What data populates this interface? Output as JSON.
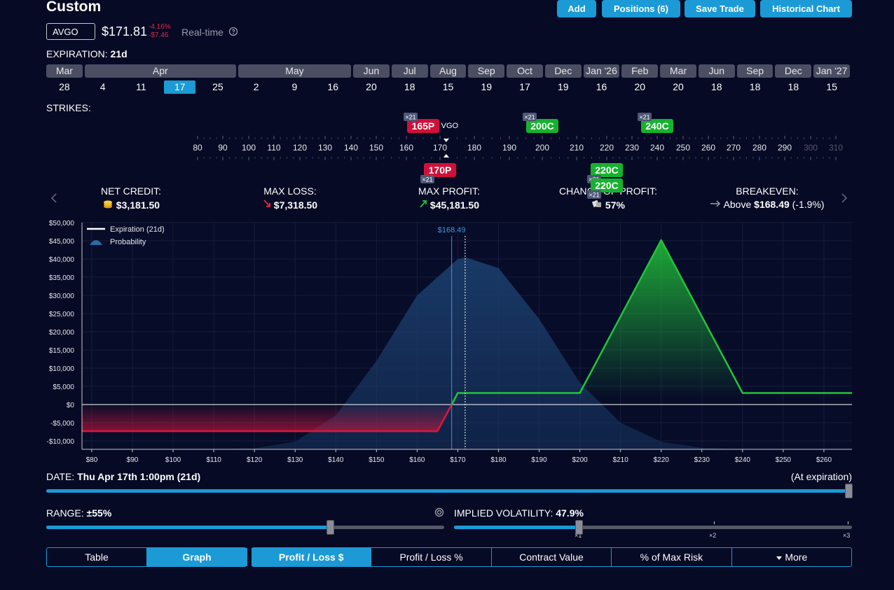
{
  "header": {
    "title": "Custom",
    "buttons": [
      "Add",
      "Positions (6)",
      "Save Trade",
      "Historical Chart"
    ]
  },
  "quote": {
    "symbol": "AVGO",
    "price": "$171.81",
    "change_pct": "-4.16%",
    "change_abs": "-$7.46",
    "feed": "Real-time"
  },
  "expiration": {
    "label": "EXPIRATION:",
    "value": "21d",
    "months": [
      {
        "name": "Mar",
        "days": [
          28
        ]
      },
      {
        "name": "Apr",
        "days": [
          4,
          11,
          17,
          25
        ]
      },
      {
        "name": "May",
        "days": [
          2,
          9,
          16
        ]
      },
      {
        "name": "Jun",
        "days": [
          20
        ]
      },
      {
        "name": "Jul",
        "days": [
          18
        ]
      },
      {
        "name": "Aug",
        "days": [
          15
        ]
      },
      {
        "name": "Sep",
        "days": [
          19
        ]
      },
      {
        "name": "Oct",
        "days": [
          17
        ]
      },
      {
        "name": "Dec",
        "days": [
          19
        ]
      },
      {
        "name": "Jan '26",
        "days": [
          16
        ]
      },
      {
        "name": "Feb",
        "days": [
          20
        ]
      },
      {
        "name": "Mar",
        "days": [
          20
        ]
      },
      {
        "name": "Jun",
        "days": [
          18
        ]
      },
      {
        "name": "Sep",
        "days": [
          18
        ]
      },
      {
        "name": "Dec",
        "days": [
          18
        ]
      },
      {
        "name": "Jan '27",
        "days": [
          15
        ]
      }
    ],
    "selected": {
      "month": 1,
      "day": 2
    }
  },
  "strikes": {
    "label": "STRIKES:",
    "ticks": [
      80,
      90,
      100,
      110,
      120,
      130,
      140,
      150,
      160,
      170,
      180,
      190,
      200,
      210,
      220,
      230,
      240,
      250,
      260,
      270,
      280,
      290,
      300,
      310
    ],
    "price_marker": "VGO",
    "above": [
      {
        "label": "165P",
        "qty": "×21",
        "strike": 165,
        "color": "#d0103a"
      },
      {
        "label": "200C",
        "qty": "×21",
        "strike": 200,
        "color": "#16b22e"
      },
      {
        "label": "240C",
        "qty": "×21",
        "strike": 240,
        "color": "#16b22e"
      }
    ],
    "below": [
      {
        "label": "170P",
        "qty": "×21",
        "strike": 170,
        "color": "#d0103a"
      },
      {
        "label": "220C",
        "qty": "×21",
        "strike": 220,
        "color": "#16b22e"
      },
      {
        "label": "220C",
        "qty": "×21",
        "strike": 220,
        "color": "#16b22e"
      }
    ]
  },
  "stats": [
    {
      "label": "NET CREDIT:",
      "value": "$3,181.50"
    },
    {
      "label": "MAX LOSS:",
      "value": "$7,318.50"
    },
    {
      "label": "MAX PROFIT:",
      "value": "$45,181.50"
    },
    {
      "label": "CHANCE OF PROFIT:",
      "value": "57%"
    },
    {
      "label": "BREAKEVEN:",
      "prefix": "Above",
      "value": "$168.49",
      "suffix": "(-1.9%)"
    }
  ],
  "chart_data": {
    "type": "line",
    "series": [
      {
        "name": "Expiration (21d)",
        "color": "#ffffff",
        "x": [
          77.6,
          165,
          170,
          200,
          220,
          240,
          266.9
        ],
        "values": [
          -7318.5,
          -7318.5,
          3181.5,
          3181.5,
          45181.5,
          3181.5,
          3181.5
        ]
      },
      {
        "name": "Probability",
        "color": "#1a3c6a",
        "x": [
          110,
          120,
          130,
          140,
          150,
          160,
          170,
          172,
          180,
          190,
          200,
          210,
          220,
          230,
          240
        ],
        "values": [
          -12300,
          -12000,
          -10200,
          -3000,
          12000,
          30000,
          40000,
          40400,
          37500,
          23500,
          6000,
          -5000,
          -10200,
          -11900,
          -12300
        ]
      }
    ],
    "profit_color": "#22c43a",
    "loss_color": "#d9173f",
    "breakeven": 168.49,
    "breakeven_label": "$168.49",
    "price": 171.81,
    "xlim": [
      77.6,
      266.9
    ],
    "xticks": [
      {
        "value": 80,
        "label": "$80"
      },
      {
        "value": 90,
        "label": "$90"
      },
      {
        "value": 100,
        "label": "$100"
      },
      {
        "value": 110,
        "label": "$110"
      },
      {
        "value": 120,
        "label": "$120"
      },
      {
        "value": 130,
        "label": "$130"
      },
      {
        "value": 140,
        "label": "$140"
      },
      {
        "value": 150,
        "label": "$150"
      },
      {
        "value": 160,
        "label": "$160"
      },
      {
        "value": 170,
        "label": "$170"
      },
      {
        "value": 180,
        "label": "$180"
      },
      {
        "value": 190,
        "label": "$190"
      },
      {
        "value": 200,
        "label": "$200"
      },
      {
        "value": 210,
        "label": "$210"
      },
      {
        "value": 220,
        "label": "$220"
      },
      {
        "value": 230,
        "label": "$230"
      },
      {
        "value": 240,
        "label": "$240"
      },
      {
        "value": 250,
        "label": "$250"
      },
      {
        "value": 260,
        "label": "$260"
      }
    ],
    "ylim": [
      -12300,
      50000
    ],
    "yticks": [
      {
        "value": -10000,
        "label": "-$10,000"
      },
      {
        "value": -5000,
        "label": "-$5,000"
      },
      {
        "value": 0,
        "label": "$0"
      },
      {
        "value": 5000,
        "label": "$5,000"
      },
      {
        "value": 10000,
        "label": "$10,000"
      },
      {
        "value": 15000,
        "label": "$15,000"
      },
      {
        "value": 20000,
        "label": "$20,000"
      },
      {
        "value": 25000,
        "label": "$25,000"
      },
      {
        "value": 30000,
        "label": "$30,000"
      },
      {
        "value": 35000,
        "label": "$35,000"
      },
      {
        "value": 40000,
        "label": "$40,000"
      },
      {
        "value": 45000,
        "label": "$45,000"
      },
      {
        "value": 50000,
        "label": "$50,000"
      }
    ],
    "grid": true
  },
  "date": {
    "label": "DATE:",
    "value": "Thu Apr 17th 1:00pm (21d)",
    "right": "(At expiration)"
  },
  "range": {
    "label": "RANGE:",
    "value": "±55%"
  },
  "volatility": {
    "label": "IMPLIED VOLATILITY:",
    "value": "47.9%",
    "ticks": [
      "×1",
      "×2",
      "×3"
    ]
  },
  "view_tabs": [
    "Table",
    "Graph"
  ],
  "active_view": 1,
  "metric_tabs": [
    "Profit / Loss $",
    "Profit / Loss %",
    "Contract Value",
    "% of Max Risk",
    "More"
  ],
  "active_metric": 0
}
